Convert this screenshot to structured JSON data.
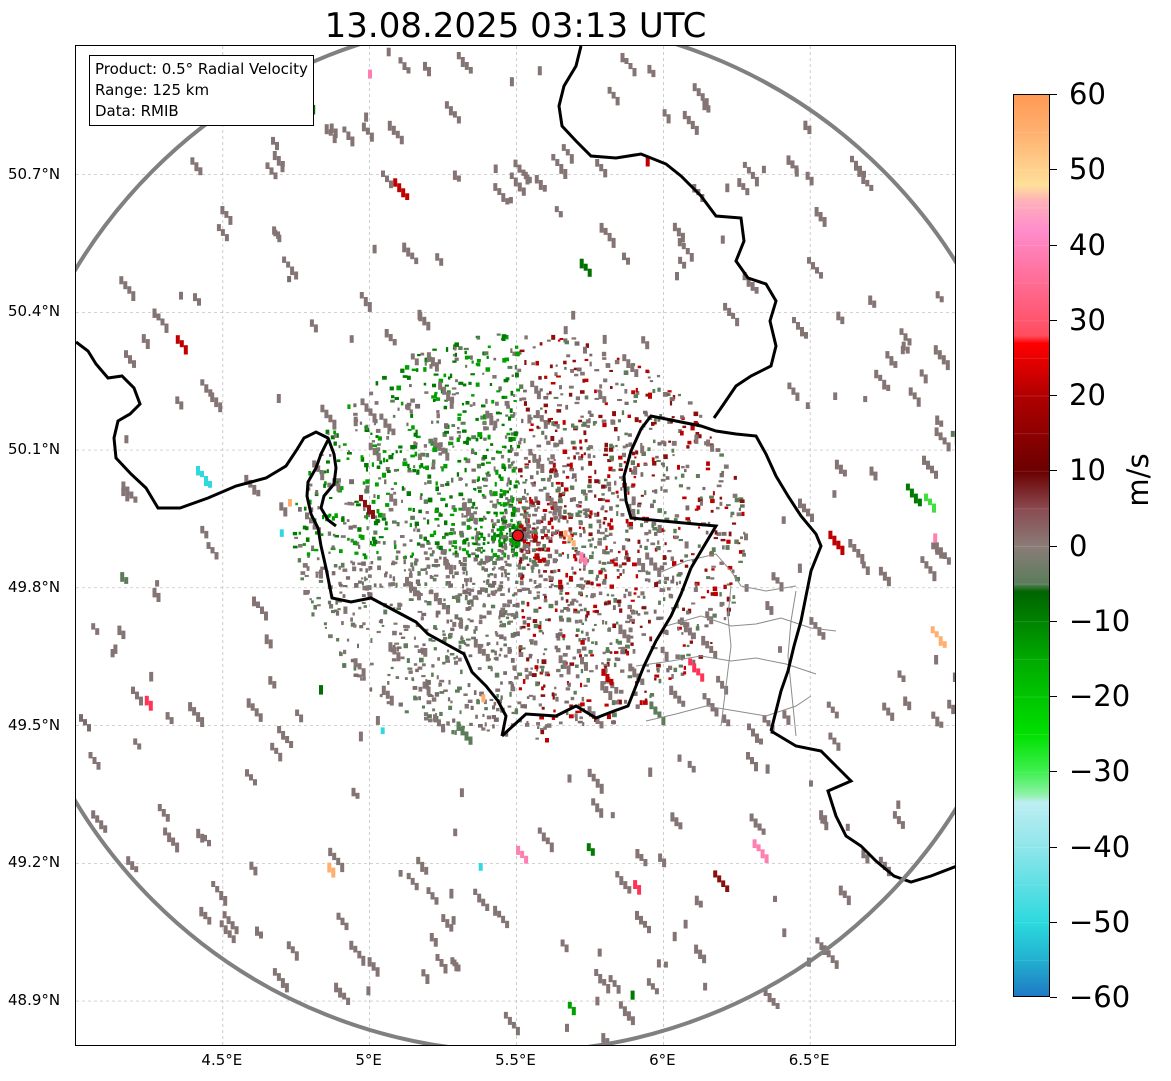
{
  "title": "13.08.2025 03:13 UTC",
  "info": {
    "product": "Product: 0.5° Radial Velocity",
    "range": "Range: 125 km",
    "data": "Data: RMIB"
  },
  "axes": {
    "lat_ticks": [
      "50.7°N",
      "50.4°N",
      "50.1°N",
      "49.8°N",
      "49.5°N",
      "49.2°N",
      "48.9°N"
    ],
    "lon_ticks": [
      "4.5°E",
      "5°E",
      "5.5°E",
      "6°E",
      "6.5°E"
    ],
    "lat_values": [
      50.7,
      50.4,
      50.1,
      49.8,
      49.5,
      49.2,
      48.9
    ],
    "lon_values": [
      4.5,
      5.0,
      5.5,
      6.0,
      6.5
    ],
    "lon_range": [
      4.0,
      7.0
    ],
    "lat_range": [
      48.8,
      50.98
    ]
  },
  "radar": {
    "site": {
      "lon": 5.505,
      "lat": 49.914
    },
    "range_km": 125,
    "site_color": "#e8141a",
    "range_ring_color": "#808080"
  },
  "colorbar": {
    "label": "m/s",
    "ticks": [
      "60",
      "50",
      "40",
      "30",
      "20",
      "10",
      "0",
      "−10",
      "−20",
      "−30",
      "−40",
      "−50",
      "−60"
    ],
    "tick_values": [
      60,
      50,
      40,
      30,
      20,
      10,
      0,
      -10,
      -20,
      -30,
      -40,
      -50,
      -60
    ],
    "vmin": -60,
    "vmax": 60,
    "stops": [
      {
        "v": -60,
        "c": "#1f77c4"
      },
      {
        "v": -55,
        "c": "#22b0d0"
      },
      {
        "v": -50,
        "c": "#2cd9de"
      },
      {
        "v": -40,
        "c": "#8fe6ea"
      },
      {
        "v": -34,
        "c": "#bdeef2"
      },
      {
        "v": -33,
        "c": "#8ff2a8"
      },
      {
        "v": -30,
        "c": "#40f050"
      },
      {
        "v": -25,
        "c": "#00e000"
      },
      {
        "v": -15,
        "c": "#00aa00"
      },
      {
        "v": -6,
        "c": "#006400"
      },
      {
        "v": -5,
        "c": "#5a7d5a"
      },
      {
        "v": 0,
        "c": "#8a7c78"
      },
      {
        "v": 5,
        "c": "#8a4a50"
      },
      {
        "v": 10,
        "c": "#6b0000"
      },
      {
        "v": 20,
        "c": "#b00000"
      },
      {
        "v": 27,
        "c": "#ff0000"
      },
      {
        "v": 28,
        "c": "#ff4d5e"
      },
      {
        "v": 35,
        "c": "#ff6b94"
      },
      {
        "v": 42,
        "c": "#ff8ccc"
      },
      {
        "v": 46,
        "c": "#ffb2b8"
      },
      {
        "v": 48,
        "c": "#ffe09a"
      },
      {
        "v": 55,
        "c": "#ffb070"
      },
      {
        "v": 60,
        "c": "#ff9a55"
      }
    ]
  },
  "map_colors": {
    "border": "#000000",
    "admin": "#8c8c8c",
    "grid": "#b8b8b8",
    "echo_palette": [
      "#847474",
      "#7a6c6c",
      "#5d7d5a",
      "#007a00",
      "#00a000",
      "#007000",
      "#8a1010",
      "#c00000",
      "#ff3355",
      "#40e040",
      "#ff80b0",
      "#30d8e0",
      "#ffb070"
    ]
  }
}
